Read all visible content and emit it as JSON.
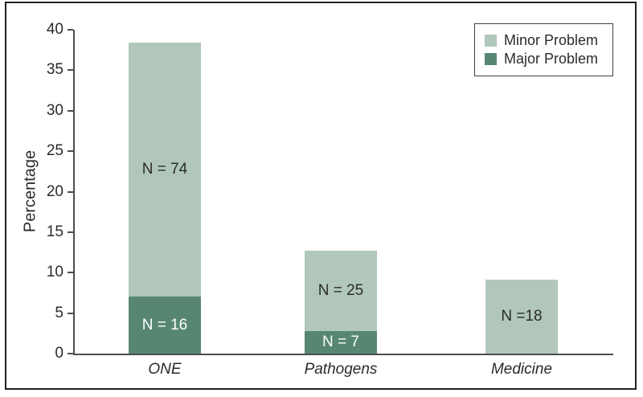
{
  "chart_data": {
    "type": "bar",
    "stacked": true,
    "title": "",
    "xlabel": "",
    "ylabel": "Percentage",
    "ylim": [
      0,
      40
    ],
    "yticks": [
      0,
      5,
      10,
      15,
      20,
      25,
      30,
      35,
      40
    ],
    "categories": [
      "ONE",
      "Pathogens",
      "Medicine"
    ],
    "series": [
      {
        "name": "Minor Problem",
        "color": "#b1c7ba",
        "values": [
          31.4,
          9.9,
          9.1
        ],
        "bar_labels": [
          "N = 74",
          "N = 25",
          "N =18"
        ],
        "label_color": "#2b2b2b"
      },
      {
        "name": "Major Problem",
        "color": "#578773",
        "values": [
          7,
          2.8,
          0
        ],
        "bar_labels": [
          "N = 16",
          "N = 7",
          ""
        ],
        "label_color": "#ffffff"
      }
    ],
    "stack_order_bottom_to_top": [
      "Major Problem",
      "Minor Problem"
    ],
    "bar_totals": [
      38.4,
      12.7,
      9.1
    ],
    "legend_position": "top-right",
    "grid": false,
    "axis_color": "#4d4d4d",
    "text_color": "#2b2b2b"
  }
}
